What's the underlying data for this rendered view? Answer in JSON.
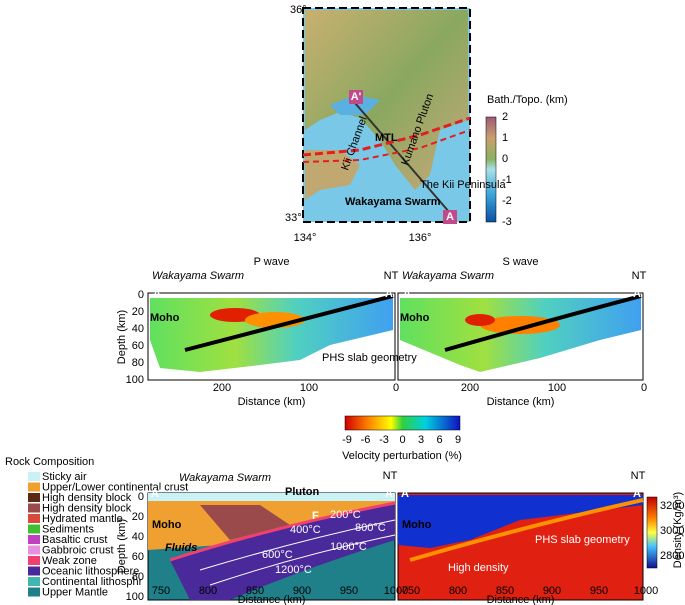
{
  "map": {
    "lat_labels": [
      "36°",
      "33°"
    ],
    "lon_labels": [
      "134°",
      "136°"
    ],
    "labels": {
      "a_prime": "A'",
      "a": "A",
      "mtl": "MTL",
      "kii_channel": "Kii Channel",
      "kumano_pluton": "Kumano Pluton",
      "kii_peninsula": "The Kii Peninsula",
      "wakayama_swarm": "Wakayama Swarm"
    },
    "colorbar": {
      "title": "Bath./Topo. (km)",
      "ticks": [
        "2",
        "1",
        "0",
        "-1",
        "-2",
        "-3"
      ]
    }
  },
  "tomography": {
    "panels": [
      {
        "title": "P wave",
        "x_ticks": [
          "200",
          "100",
          "0"
        ]
      },
      {
        "title": "S wave",
        "x_ticks": [
          "200",
          "100",
          "0"
        ]
      }
    ],
    "swarm": "Wakayama Swarm",
    "nt": "NT",
    "a_prime": "A'",
    "a": "A",
    "moho": "Moho",
    "slab": "PHS slab geometry",
    "y_ticks": [
      "0",
      "20",
      "40",
      "60",
      "80",
      "100"
    ],
    "y_label": "Depth (km)",
    "x_label": "Distance (km)",
    "colorbar": {
      "ticks": [
        "-9",
        "-6",
        "-3",
        "0",
        "3",
        "6",
        "9"
      ],
      "label": "Velocity perturbation (%)"
    }
  },
  "legend": {
    "title": "Rock Composition",
    "items": [
      {
        "label": "Sticky air",
        "color": "#c9f2f7"
      },
      {
        "label": "Upper/Lower continental crust",
        "color": "#f0a030"
      },
      {
        "label": "High density block",
        "color": "#5a2a14"
      },
      {
        "label": "High density block",
        "color": "#9a4a4a"
      },
      {
        "label": "Hydrated mantle",
        "color": "#d84a3a"
      },
      {
        "label": "Sediments",
        "color": "#40c030"
      },
      {
        "label": "Basaltic crust",
        "color": "#c040c0"
      },
      {
        "label": "Gabbroic crust",
        "color": "#e890e0"
      },
      {
        "label": "Weak zone",
        "color": "#f04070"
      },
      {
        "label": "Oceanic lithosphere",
        "color": "#4a2a9a"
      },
      {
        "label": "Continental lithosphr",
        "color": "#40b8b0"
      },
      {
        "label": "Upper Mantle",
        "color": "#20808a"
      }
    ]
  },
  "model": {
    "swarm": "Wakayama Swarm",
    "pluton": "Pluton",
    "nt": "NT",
    "a_prime": "A'",
    "a": "A",
    "moho": "Moho",
    "fluids": "Fluids",
    "f": "F",
    "isotherms": [
      "200°C",
      "400°C",
      "600°C",
      "800°C",
      "1000°C",
      "1200°C"
    ],
    "high_density": "High density",
    "slab": "PHS slab geometry",
    "x_ticks": [
      "750",
      "800",
      "850",
      "900",
      "950",
      "1000"
    ],
    "y_ticks": [
      "0",
      "20",
      "40",
      "60",
      "80",
      "100"
    ],
    "y_label": "Depth (km)",
    "x_label": "Distance (km)",
    "density_colorbar": {
      "ticks": [
        "3200",
        "3000",
        "2800"
      ],
      "label": "Density (Kg/m³)"
    }
  }
}
